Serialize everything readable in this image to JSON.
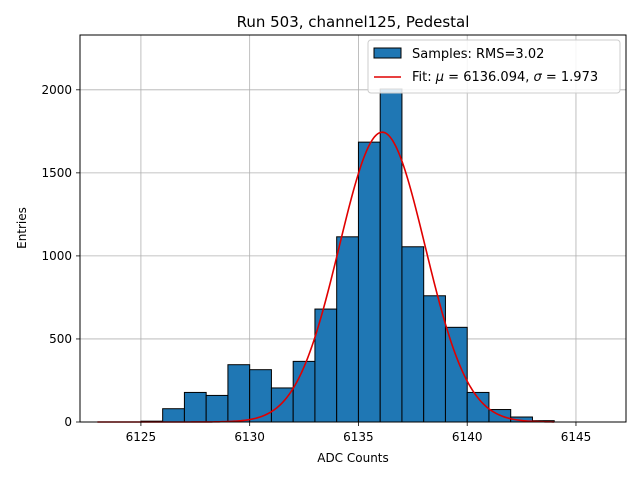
{
  "chart_data": {
    "type": "bar",
    "title": "Run 503, channel125, Pedestal",
    "xlabel": "ADC Counts",
    "ylabel": "Entries",
    "xlim": [
      6122.2,
      6147.3
    ],
    "ylim": [
      0,
      2330
    ],
    "xticks": [
      6125,
      6130,
      6135,
      6140,
      6145
    ],
    "xtick_labels": [
      "6125",
      "6130",
      "6135",
      "6140",
      "6145"
    ],
    "yticks": [
      0,
      500,
      1000,
      1500,
      2000
    ],
    "ytick_labels": [
      "0",
      "500",
      "1000",
      "1500",
      "2000"
    ],
    "grid": true,
    "bin_width": 1,
    "histogram": {
      "name": "Samples: RMS=3.02",
      "color": "#1f77b4",
      "bins": [
        {
          "left": 6125,
          "count": 5
        },
        {
          "left": 6126,
          "count": 80
        },
        {
          "left": 6127,
          "count": 178
        },
        {
          "left": 6128,
          "count": 160
        },
        {
          "left": 6129,
          "count": 345
        },
        {
          "left": 6130,
          "count": 315
        },
        {
          "left": 6131,
          "count": 205
        },
        {
          "left": 6132,
          "count": 365
        },
        {
          "left": 6133,
          "count": 680
        },
        {
          "left": 6134,
          "count": 1115
        },
        {
          "left": 6135,
          "count": 1685
        },
        {
          "left": 6136,
          "count": 2005
        },
        {
          "left": 6137,
          "count": 1055
        },
        {
          "left": 6138,
          "count": 760
        },
        {
          "left": 6139,
          "count": 570
        },
        {
          "left": 6140,
          "count": 178
        },
        {
          "left": 6141,
          "count": 75
        },
        {
          "left": 6142,
          "count": 30
        },
        {
          "left": 6143,
          "count": 8
        }
      ]
    },
    "fit": {
      "name_prefix": "Fit: ",
      "mu_symbol": "μ",
      "mu_value": " = 6136.094, ",
      "sigma_symbol": "σ",
      "sigma_value": " = 1.973",
      "color": "#e00000",
      "mu": 6136.094,
      "sigma": 1.973,
      "amplitude": 1745,
      "x_range": [
        6123,
        6144
      ]
    },
    "legend_position": "top-right"
  }
}
